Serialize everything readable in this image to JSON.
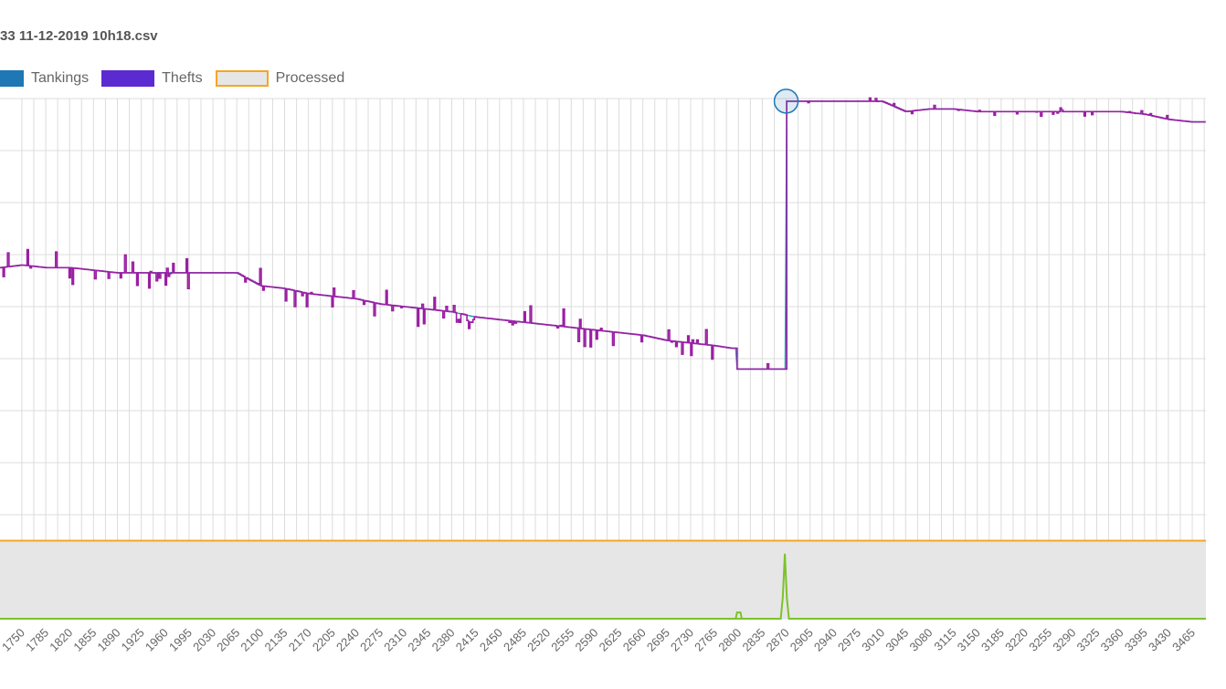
{
  "chart_title": "33 11-12-2019 10h18.csv",
  "colors": {
    "tankings": "#1f77b4",
    "thefts": "#5b2bd1",
    "processed_border": "#f5a623",
    "processed_fill": "#e6e6e6",
    "main_line_teal": "#17a2b8",
    "main_line_purple": "#9b1fa3",
    "spike_line": "#7dc22b",
    "grid": "#dcdcdc"
  },
  "chart_data": {
    "type": "line",
    "title": "33 11-12-2019 10h18.csv",
    "legend": [
      {
        "name": "Tankings",
        "color": "#1f77b4"
      },
      {
        "name": "Thefts",
        "color": "#5b2bd1"
      },
      {
        "name": "Processed",
        "color": "#e6e6e6",
        "border": "#f5a623"
      }
    ],
    "legend_position": "top-left",
    "grid": true,
    "x_ticks": [
      1750,
      1785,
      1820,
      1855,
      1890,
      1925,
      1960,
      1995,
      2030,
      2065,
      2100,
      2135,
      2170,
      2205,
      2240,
      2275,
      2310,
      2345,
      2380,
      2415,
      2450,
      2485,
      2520,
      2555,
      2590,
      2625,
      2660,
      2695,
      2730,
      2765,
      2800,
      2835,
      2870,
      2905,
      2940,
      2975,
      3010,
      3045,
      3080,
      3115,
      3150,
      3185,
      3220,
      3255,
      3290,
      3325,
      3360,
      3395,
      3430,
      3465
    ],
    "xlim": [
      1718,
      3485
    ],
    "ylim": [
      0,
      10
    ],
    "series": [
      {
        "kind": "level",
        "x": [
          1718,
          1750,
          1785,
          1820,
          1855,
          1890,
          1925,
          1960,
          1995,
          2030,
          2065,
          2100,
          2135,
          2170,
          2205,
          2240,
          2275,
          2310,
          2345,
          2380,
          2415,
          2450,
          2485,
          2520,
          2555,
          2590,
          2625,
          2660,
          2695,
          2730,
          2765,
          2790,
          2796,
          2868,
          2870,
          2905,
          2940,
          2975,
          3010,
          3045,
          3080,
          3115,
          3150,
          3185,
          3220,
          3255,
          3290,
          3325,
          3360,
          3395,
          3430,
          3465,
          3485
        ],
        "values": [
          6.75,
          6.8,
          6.75,
          6.75,
          6.7,
          6.65,
          6.65,
          6.65,
          6.65,
          6.65,
          6.65,
          6.4,
          6.35,
          6.25,
          6.2,
          6.15,
          6.05,
          6.0,
          5.95,
          5.9,
          5.8,
          5.75,
          5.7,
          5.65,
          5.6,
          5.55,
          5.5,
          5.45,
          5.35,
          5.3,
          5.25,
          5.2,
          4.8,
          4.8,
          9.95,
          9.95,
          9.95,
          9.95,
          9.95,
          9.75,
          9.8,
          9.8,
          9.75,
          9.75,
          9.75,
          9.75,
          9.75,
          9.75,
          9.75,
          9.7,
          9.6,
          9.55,
          9.55
        ]
      },
      {
        "kind": "theft",
        "x": [
          1718,
          2855,
          2862,
          2865,
          2868,
          2871,
          2874,
          2881,
          3485
        ],
        "values": [
          0,
          0,
          0,
          0.4,
          1.25,
          0.4,
          0,
          0,
          0
        ]
      }
    ],
    "processed_threshold": 1.5,
    "highlight_x": 2870,
    "highlight_y": 9.95
  }
}
